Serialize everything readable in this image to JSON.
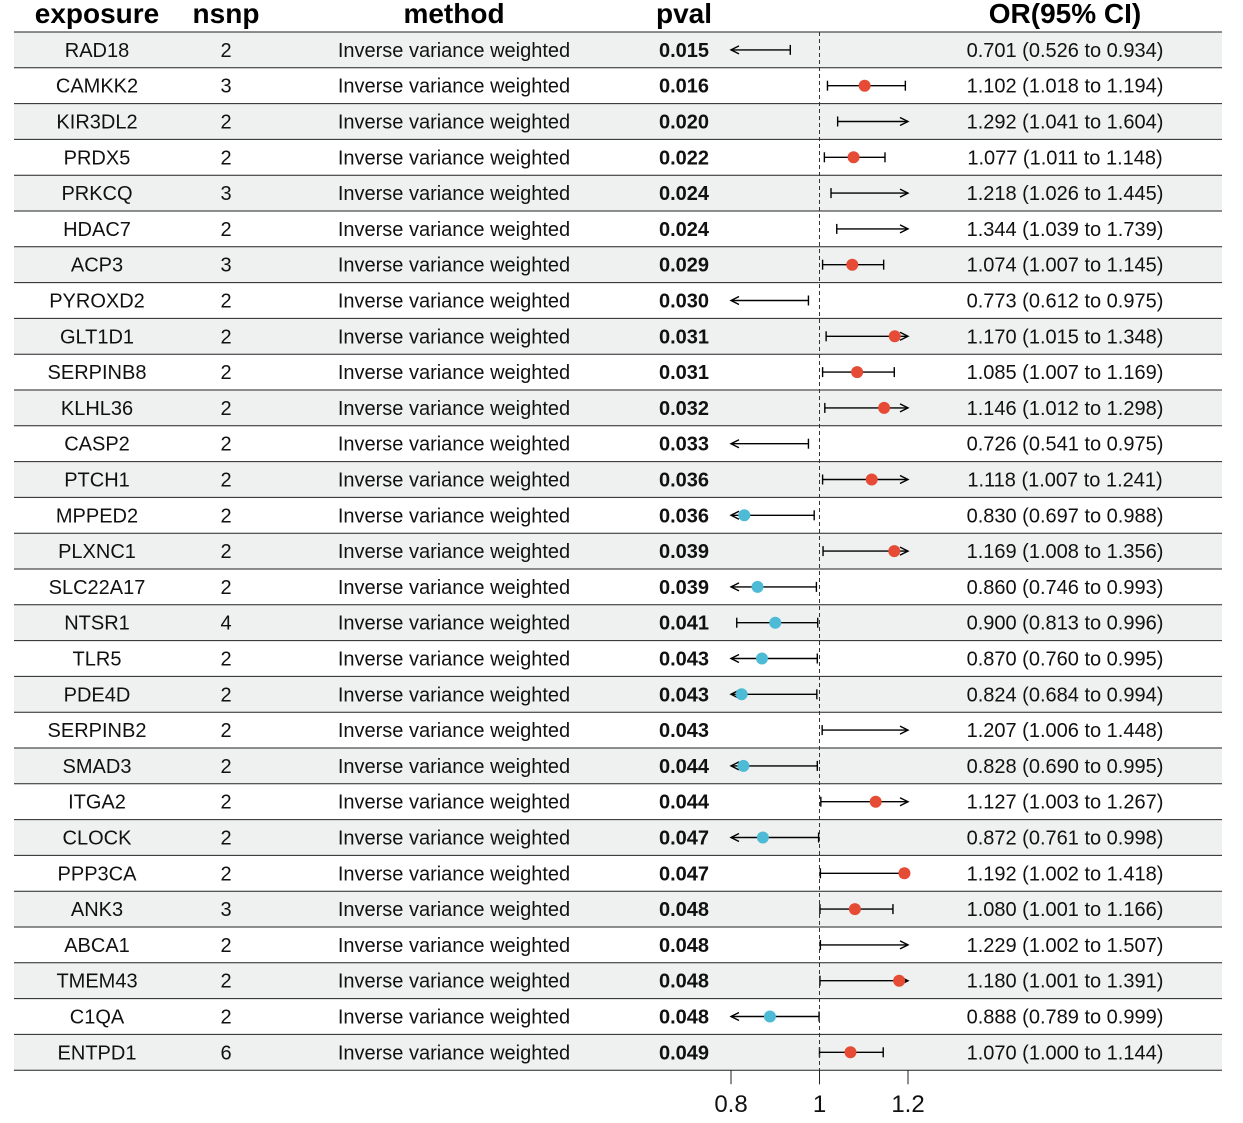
{
  "headers": {
    "exposure": "exposure",
    "nsnp": "nsnp",
    "method": "method",
    "pval": "pval",
    "or": "OR(95% CI)"
  },
  "colors": {
    "risk": "#e64b35",
    "protective": "#4dbbd5",
    "stripe": "#eef1f0",
    "line": "#000000"
  },
  "chart_data": {
    "type": "forest",
    "reference_line": 1,
    "xlim": [
      0.8,
      1.2
    ],
    "xticks": [
      "0.8",
      "1",
      "1.2"
    ],
    "rows": [
      {
        "exposure": "RAD18",
        "nsnp": "2",
        "method": "Inverse variance weighted",
        "pval": "0.015",
        "or": 0.701,
        "lo": 0.526,
        "hi": 0.934,
        "ci_text": "0.701 (0.526 to 0.934)"
      },
      {
        "exposure": "CAMKK2",
        "nsnp": "3",
        "method": "Inverse variance weighted",
        "pval": "0.016",
        "or": 1.102,
        "lo": 1.018,
        "hi": 1.194,
        "ci_text": "1.102 (1.018 to 1.194)"
      },
      {
        "exposure": "KIR3DL2",
        "nsnp": "2",
        "method": "Inverse variance weighted",
        "pval": "0.020",
        "or": 1.292,
        "lo": 1.041,
        "hi": 1.604,
        "ci_text": "1.292 (1.041 to 1.604)"
      },
      {
        "exposure": "PRDX5",
        "nsnp": "2",
        "method": "Inverse variance weighted",
        "pval": "0.022",
        "or": 1.077,
        "lo": 1.011,
        "hi": 1.148,
        "ci_text": "1.077 (1.011 to 1.148)"
      },
      {
        "exposure": "PRKCQ",
        "nsnp": "3",
        "method": "Inverse variance weighted",
        "pval": "0.024",
        "or": 1.218,
        "lo": 1.026,
        "hi": 1.445,
        "ci_text": "1.218 (1.026 to 1.445)"
      },
      {
        "exposure": "HDAC7",
        "nsnp": "2",
        "method": "Inverse variance weighted",
        "pval": "0.024",
        "or": 1.344,
        "lo": 1.039,
        "hi": 1.739,
        "ci_text": "1.344 (1.039 to 1.739)"
      },
      {
        "exposure": "ACP3",
        "nsnp": "3",
        "method": "Inverse variance weighted",
        "pval": "0.029",
        "or": 1.074,
        "lo": 1.007,
        "hi": 1.145,
        "ci_text": "1.074 (1.007 to 1.145)"
      },
      {
        "exposure": "PYROXD2",
        "nsnp": "2",
        "method": "Inverse variance weighted",
        "pval": "0.030",
        "or": 0.773,
        "lo": 0.612,
        "hi": 0.975,
        "ci_text": "0.773 (0.612 to 0.975)"
      },
      {
        "exposure": "GLT1D1",
        "nsnp": "2",
        "method": "Inverse variance weighted",
        "pval": "0.031",
        "or": 1.17,
        "lo": 1.015,
        "hi": 1.348,
        "ci_text": "1.170 (1.015 to 1.348)"
      },
      {
        "exposure": "SERPINB8",
        "nsnp": "2",
        "method": "Inverse variance weighted",
        "pval": "0.031",
        "or": 1.085,
        "lo": 1.007,
        "hi": 1.169,
        "ci_text": "1.085 (1.007 to 1.169)"
      },
      {
        "exposure": "KLHL36",
        "nsnp": "2",
        "method": "Inverse variance weighted",
        "pval": "0.032",
        "or": 1.146,
        "lo": 1.012,
        "hi": 1.298,
        "ci_text": "1.146 (1.012 to 1.298)"
      },
      {
        "exposure": "CASP2",
        "nsnp": "2",
        "method": "Inverse variance weighted",
        "pval": "0.033",
        "or": 0.726,
        "lo": 0.541,
        "hi": 0.975,
        "ci_text": "0.726 (0.541 to 0.975)"
      },
      {
        "exposure": "PTCH1",
        "nsnp": "2",
        "method": "Inverse variance weighted",
        "pval": "0.036",
        "or": 1.118,
        "lo": 1.007,
        "hi": 1.241,
        "ci_text": "1.118 (1.007 to 1.241)"
      },
      {
        "exposure": "MPPED2",
        "nsnp": "2",
        "method": "Inverse variance weighted",
        "pval": "0.036",
        "or": 0.83,
        "lo": 0.697,
        "hi": 0.988,
        "ci_text": "0.830 (0.697 to 0.988)"
      },
      {
        "exposure": "PLXNC1",
        "nsnp": "2",
        "method": "Inverse variance weighted",
        "pval": "0.039",
        "or": 1.169,
        "lo": 1.008,
        "hi": 1.356,
        "ci_text": "1.169 (1.008 to 1.356)"
      },
      {
        "exposure": "SLC22A17",
        "nsnp": "2",
        "method": "Inverse variance weighted",
        "pval": "0.039",
        "or": 0.86,
        "lo": 0.746,
        "hi": 0.993,
        "ci_text": "0.860 (0.746 to 0.993)"
      },
      {
        "exposure": "NTSR1",
        "nsnp": "4",
        "method": "Inverse variance weighted",
        "pval": "0.041",
        "or": 0.9,
        "lo": 0.813,
        "hi": 0.996,
        "ci_text": "0.900 (0.813 to 0.996)"
      },
      {
        "exposure": "TLR5",
        "nsnp": "2",
        "method": "Inverse variance weighted",
        "pval": "0.043",
        "or": 0.87,
        "lo": 0.76,
        "hi": 0.995,
        "ci_text": "0.870 (0.760 to 0.995)"
      },
      {
        "exposure": "PDE4D",
        "nsnp": "2",
        "method": "Inverse variance weighted",
        "pval": "0.043",
        "or": 0.824,
        "lo": 0.684,
        "hi": 0.994,
        "ci_text": "0.824 (0.684 to 0.994)"
      },
      {
        "exposure": "SERPINB2",
        "nsnp": "2",
        "method": "Inverse variance weighted",
        "pval": "0.043",
        "or": 1.207,
        "lo": 1.006,
        "hi": 1.448,
        "ci_text": "1.207 (1.006 to 1.448)"
      },
      {
        "exposure": "SMAD3",
        "nsnp": "2",
        "method": "Inverse variance weighted",
        "pval": "0.044",
        "or": 0.828,
        "lo": 0.69,
        "hi": 0.995,
        "ci_text": "0.828 (0.690 to 0.995)"
      },
      {
        "exposure": "ITGA2",
        "nsnp": "2",
        "method": "Inverse variance weighted",
        "pval": "0.044",
        "or": 1.127,
        "lo": 1.003,
        "hi": 1.267,
        "ci_text": "1.127 (1.003 to 1.267)"
      },
      {
        "exposure": "CLOCK",
        "nsnp": "2",
        "method": "Inverse variance weighted",
        "pval": "0.047",
        "or": 0.872,
        "lo": 0.761,
        "hi": 0.998,
        "ci_text": "0.872 (0.761 to 0.998)"
      },
      {
        "exposure": "PPP3CA",
        "nsnp": "2",
        "method": "Inverse variance weighted",
        "pval": "0.047",
        "or": 1.192,
        "lo": 1.002,
        "hi": 1.418,
        "ci_text": "1.192 (1.002 to 1.418)"
      },
      {
        "exposure": "ANK3",
        "nsnp": "3",
        "method": "Inverse variance weighted",
        "pval": "0.048",
        "or": 1.08,
        "lo": 1.001,
        "hi": 1.166,
        "ci_text": "1.080 (1.001 to 1.166)"
      },
      {
        "exposure": "ABCA1",
        "nsnp": "2",
        "method": "Inverse variance weighted",
        "pval": "0.048",
        "or": 1.229,
        "lo": 1.002,
        "hi": 1.507,
        "ci_text": "1.229 (1.002 to 1.507)"
      },
      {
        "exposure": "TMEM43",
        "nsnp": "2",
        "method": "Inverse variance weighted",
        "pval": "0.048",
        "or": 1.18,
        "lo": 1.001,
        "hi": 1.391,
        "ci_text": "1.180 (1.001 to 1.391)"
      },
      {
        "exposure": "C1QA",
        "nsnp": "2",
        "method": "Inverse variance weighted",
        "pval": "0.048",
        "or": 0.888,
        "lo": 0.789,
        "hi": 0.999,
        "ci_text": "0.888 (0.789 to 0.999)"
      },
      {
        "exposure": "ENTPD1",
        "nsnp": "6",
        "method": "Inverse variance weighted",
        "pval": "0.049",
        "or": 1.07,
        "lo": 1.0,
        "hi": 1.144,
        "ci_text": "1.070 (1.000 to 1.144)"
      }
    ]
  }
}
